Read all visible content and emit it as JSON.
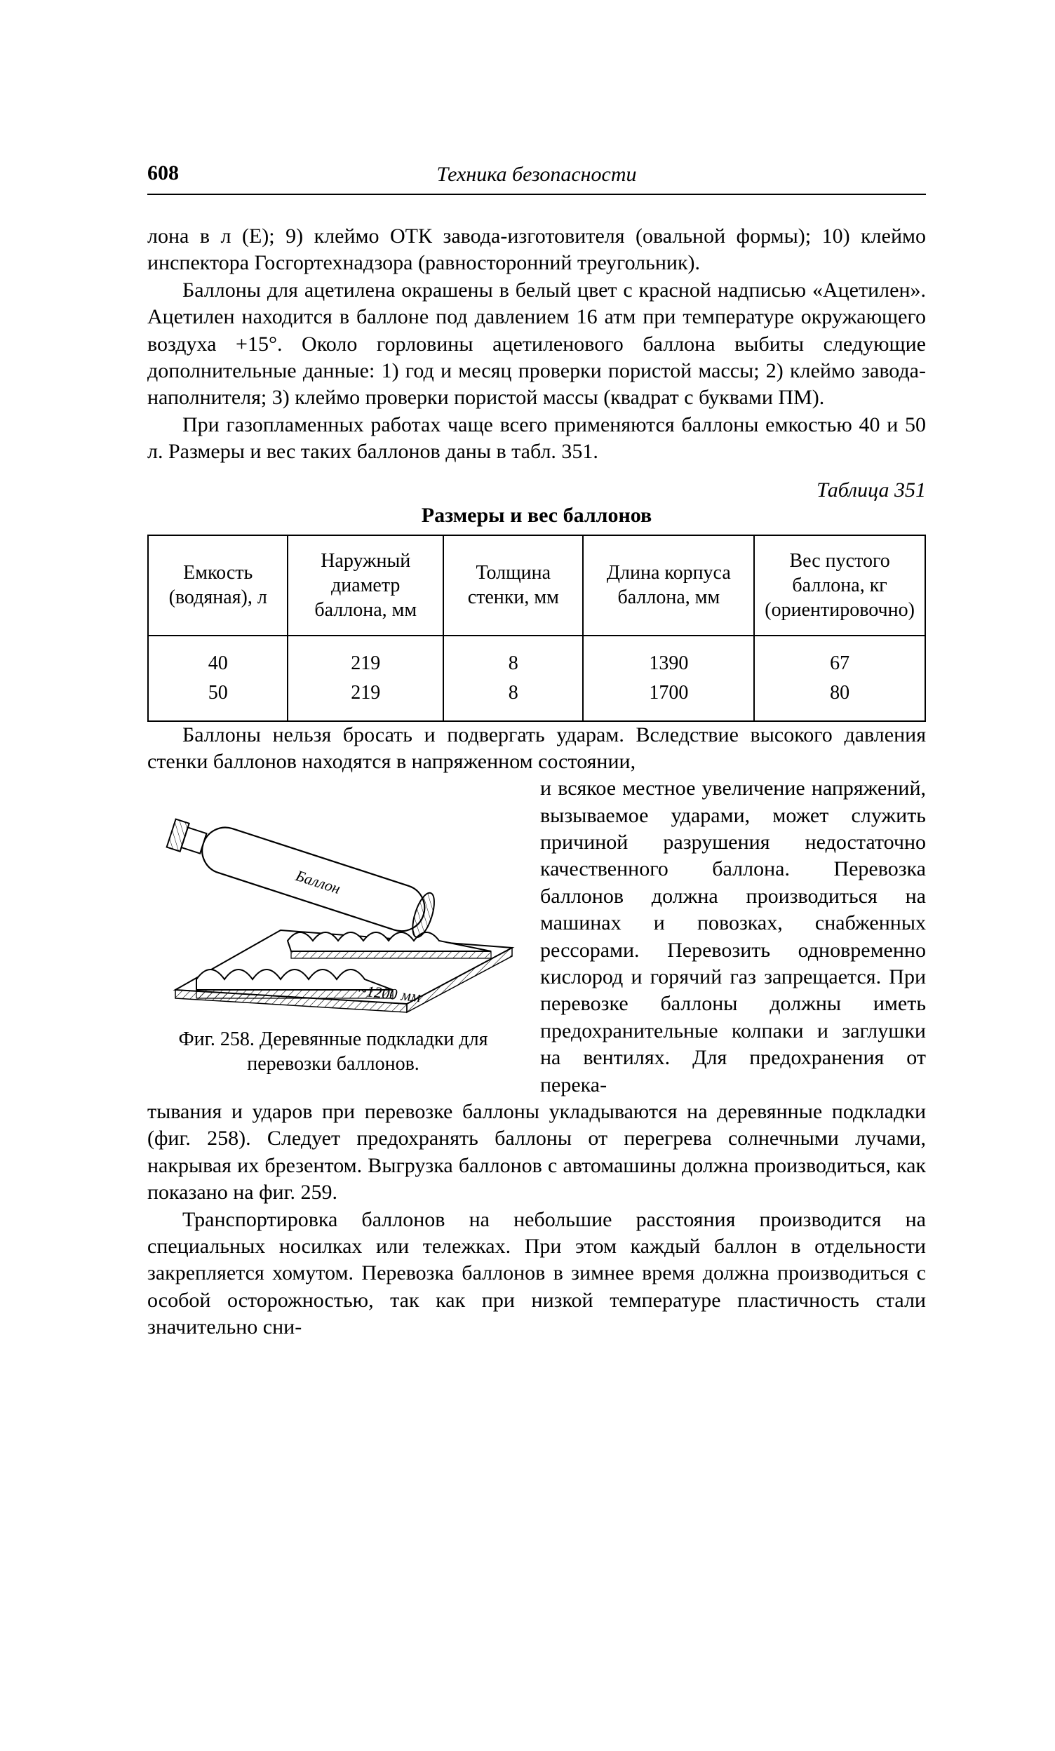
{
  "page_number": "608",
  "running_title": "Техника безопасности",
  "para1": "лона в л (Е); 9) клеймо ОТК завода-изготовителя (овальной формы); 10) клеймо инспектора Госгортехнадзора (равносторонний треугольник).",
  "para2": "Баллоны для ацетилена окрашены в белый цвет с красной надписью «Ацетилен». Ацетилен находится в баллоне под давлением 16 атм при температуре окружающего воздуха +15°. Около горловины ацетиленового баллона выбиты следующие дополнительные данные: 1) год и месяц проверки пористой массы; 2) клеймо завода-наполнителя; 3) клеймо проверки пористой массы (квадрат с буквами ПМ).",
  "para3": "При газопламенных работах чаще всего применяются баллоны емкостью 40 и 50 л. Размеры и вес таких баллонов даны в табл. 351.",
  "table_label": "Таблица 351",
  "table_title": "Размеры и вес баллонов",
  "table": {
    "columns": [
      "Емкость (водяная), л",
      "Наружный диаметр баллона, мм",
      "Толщина стенки, мм",
      "Длина корпуса баллона, мм",
      "Вес пустого баллона, кг (ориентировочно)"
    ],
    "col_widths_pct": [
      18,
      20,
      18,
      22,
      22
    ],
    "rows": [
      [
        "40",
        "219",
        "8",
        "1390",
        "67"
      ],
      [
        "50",
        "219",
        "8",
        "1700",
        "80"
      ]
    ]
  },
  "para4_lead": "Баллоны нельзя бросать и подвергать ударам. Вследствие высокого давления стенки баллонов находятся в напряженном состоянии,",
  "para4_wrap": "и всякое местное увеличение напряжений, вызываемое ударами, может служить причиной разрушения недостаточно качественного баллона. Перевозка баллонов должна производиться на машинах и повозках, снабженных рессорами. Перевозить одновременно кислород и горячий газ запрещается. При перевозке баллоны должны иметь предохранительные колпаки и заглушки на вентилях. Для предохранения от перека-",
  "para4_tail": "тывания и ударов при перевозке баллоны укладываются на деревянные подкладки (фиг. 258). Следует предохранять баллоны от перегрева солнечными лучами, накрывая их брезентом. Выгрузка баллонов с автомашины должна производиться, как показано на фиг. 259.",
  "para5": "Транспортировка баллонов на небольшие расстояния производится на специальных носилках или тележках. При этом каждый баллон в отдельности закрепляется хомутом. Перевозка баллонов в зимнее время должна производиться с особой осторожностью, так как при низкой температуре пластичность стали значительно сни-",
  "figure": {
    "caption": "Фиг. 258. Деревянные подкладки для перевозки баллонов.",
    "label_side": "Баллон",
    "label_dim": "~1200 мм",
    "stroke": "#000000",
    "fill": "#ffffff",
    "hatch": "#000000"
  }
}
